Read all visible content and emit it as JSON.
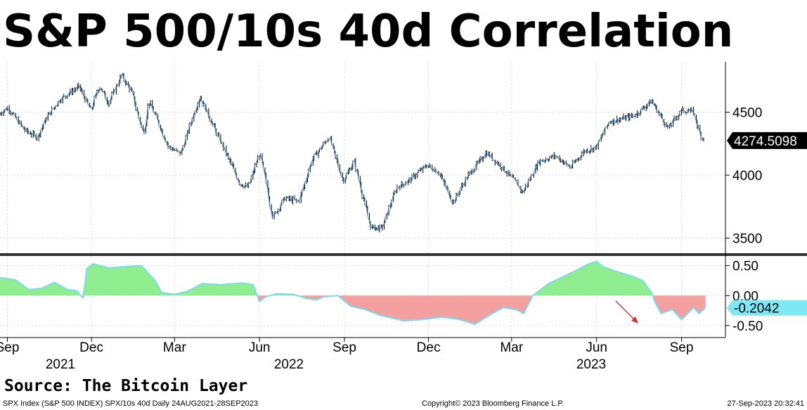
{
  "title": "S&P 500/10s 40d Correlation",
  "source": "Source: The Bitcoin Layer",
  "footer": {
    "left": "SPX Index (S&P 500 INDEX) SPX/10s 40d  Daily 24AUG2021-28SEP2023",
    "center": "Copyright© 2023 Bloomberg Finance L.P.",
    "right": "27-Sep-2023 20:32:41"
  },
  "colors": {
    "candle": "#000000",
    "price_line": "#4a90c8",
    "positive_fill": "#90ee90",
    "negative_fill": "#f4a0a0",
    "corr_line": "#7fd8f0",
    "panel_divider": "#333333",
    "arrow": "#d03030"
  },
  "chart_data": [
    {
      "type": "line",
      "name": "SPX Index",
      "x_axis_dates": {
        "months": [
          "Sep",
          "Dec",
          "Mar",
          "Jun",
          "Sep",
          "Dec",
          "Mar",
          "Jun",
          "Sep"
        ],
        "years": [
          "2021",
          "2022",
          "2023"
        ]
      },
      "x_start": "2021-08-24",
      "x_end": "2023-09-28",
      "y_ticks": [
        3500,
        4000,
        4500
      ],
      "ylim": [
        3380,
        4900
      ],
      "last_value_label": "4274.5098",
      "points": [
        [
          "2021-08-24",
          4486
        ],
        [
          "2021-09-02",
          4537
        ],
        [
          "2021-09-20",
          4358
        ],
        [
          "2021-10-04",
          4300
        ],
        [
          "2021-10-15",
          4471
        ],
        [
          "2021-10-29",
          4605
        ],
        [
          "2021-11-18",
          4704
        ],
        [
          "2021-12-01",
          4513
        ],
        [
          "2021-12-10",
          4712
        ],
        [
          "2021-12-20",
          4568
        ],
        [
          "2022-01-03",
          4796
        ],
        [
          "2022-01-14",
          4662
        ],
        [
          "2022-01-27",
          4326
        ],
        [
          "2022-02-02",
          4589
        ],
        [
          "2022-02-23",
          4225
        ],
        [
          "2022-03-08",
          4170
        ],
        [
          "2022-03-29",
          4631
        ],
        [
          "2022-04-12",
          4397
        ],
        [
          "2022-04-29",
          4132
        ],
        [
          "2022-05-11",
          3935
        ],
        [
          "2022-05-20",
          3901
        ],
        [
          "2022-06-02",
          4176
        ],
        [
          "2022-06-16",
          3667
        ],
        [
          "2022-06-29",
          3818
        ],
        [
          "2022-07-14",
          3790
        ],
        [
          "2022-07-29",
          4130
        ],
        [
          "2022-08-16",
          4305
        ],
        [
          "2022-08-31",
          3955
        ],
        [
          "2022-09-12",
          4110
        ],
        [
          "2022-09-30",
          3585
        ],
        [
          "2022-10-12",
          3577
        ],
        [
          "2022-10-28",
          3901
        ],
        [
          "2022-11-10",
          3956
        ],
        [
          "2022-11-30",
          4080
        ],
        [
          "2022-12-13",
          4019
        ],
        [
          "2022-12-28",
          3783
        ],
        [
          "2023-01-12",
          3983
        ],
        [
          "2023-02-02",
          4179
        ],
        [
          "2023-02-17",
          4079
        ],
        [
          "2023-03-09",
          3918
        ],
        [
          "2023-03-13",
          3855
        ],
        [
          "2023-03-31",
          4109
        ],
        [
          "2023-04-18",
          4154
        ],
        [
          "2023-05-04",
          4061
        ],
        [
          "2023-05-19",
          4191
        ],
        [
          "2023-06-01",
          4221
        ],
        [
          "2023-06-15",
          4425
        ],
        [
          "2023-06-30",
          4450
        ],
        [
          "2023-07-12",
          4472
        ],
        [
          "2023-07-31",
          4589
        ],
        [
          "2023-08-18",
          4370
        ],
        [
          "2023-09-01",
          4515
        ],
        [
          "2023-09-14",
          4505
        ],
        [
          "2023-09-22",
          4320
        ],
        [
          "2023-09-27",
          4274
        ]
      ]
    },
    {
      "type": "area",
      "name": "SPX/10s 40d",
      "y_ticks": [
        0.5,
        0.0,
        -0.5
      ],
      "y_tick_labels": [
        "0.50",
        "0.00",
        "-0.50"
      ],
      "ylim": [
        -0.7,
        0.66
      ],
      "last_value_label": "-0.2042",
      "points": [
        [
          "2021-08-24",
          0.3
        ],
        [
          "2021-09-10",
          0.26
        ],
        [
          "2021-09-24",
          0.1
        ],
        [
          "2021-10-08",
          0.12
        ],
        [
          "2021-10-22",
          0.22
        ],
        [
          "2021-11-05",
          0.1
        ],
        [
          "2021-11-15",
          0.08
        ],
        [
          "2021-11-22",
          -0.04
        ],
        [
          "2021-11-26",
          0.45
        ],
        [
          "2021-12-03",
          0.53
        ],
        [
          "2021-12-20",
          0.46
        ],
        [
          "2022-01-05",
          0.48
        ],
        [
          "2022-01-24",
          0.5
        ],
        [
          "2022-02-08",
          0.25
        ],
        [
          "2022-02-15",
          0.05
        ],
        [
          "2022-03-01",
          0.02
        ],
        [
          "2022-03-15",
          0.07
        ],
        [
          "2022-03-31",
          0.2
        ],
        [
          "2022-04-20",
          0.18
        ],
        [
          "2022-05-13",
          0.21
        ],
        [
          "2022-05-25",
          0.18
        ],
        [
          "2022-06-01",
          -0.1
        ],
        [
          "2022-06-08",
          -0.02
        ],
        [
          "2022-06-20",
          0.03
        ],
        [
          "2022-07-08",
          0.02
        ],
        [
          "2022-07-22",
          -0.05
        ],
        [
          "2022-08-02",
          -0.07
        ],
        [
          "2022-08-10",
          -0.02
        ],
        [
          "2022-08-25",
          0.0
        ],
        [
          "2022-09-08",
          -0.18
        ],
        [
          "2022-09-23",
          -0.23
        ],
        [
          "2022-10-10",
          -0.33
        ],
        [
          "2022-11-04",
          -0.42
        ],
        [
          "2022-11-25",
          -0.4
        ],
        [
          "2022-12-15",
          -0.36
        ],
        [
          "2023-01-04",
          -0.4
        ],
        [
          "2023-01-20",
          -0.48
        ],
        [
          "2023-02-08",
          -0.3
        ],
        [
          "2023-02-20",
          -0.2
        ],
        [
          "2023-03-07",
          -0.24
        ],
        [
          "2023-03-14",
          -0.3
        ],
        [
          "2023-03-24",
          0.0
        ],
        [
          "2023-04-10",
          0.2
        ],
        [
          "2023-04-28",
          0.33
        ],
        [
          "2023-05-10",
          0.42
        ],
        [
          "2023-05-24",
          0.53
        ],
        [
          "2023-06-01",
          0.57
        ],
        [
          "2023-06-08",
          0.48
        ],
        [
          "2023-06-23",
          0.4
        ],
        [
          "2023-07-10",
          0.32
        ],
        [
          "2023-07-21",
          0.25
        ],
        [
          "2023-07-31",
          0.04
        ],
        [
          "2023-08-03",
          -0.1
        ],
        [
          "2023-08-10",
          -0.3
        ],
        [
          "2023-08-22",
          -0.23
        ],
        [
          "2023-09-01",
          -0.4
        ],
        [
          "2023-09-14",
          -0.2
        ],
        [
          "2023-09-20",
          -0.3
        ],
        [
          "2023-09-27",
          -0.2
        ]
      ]
    }
  ]
}
